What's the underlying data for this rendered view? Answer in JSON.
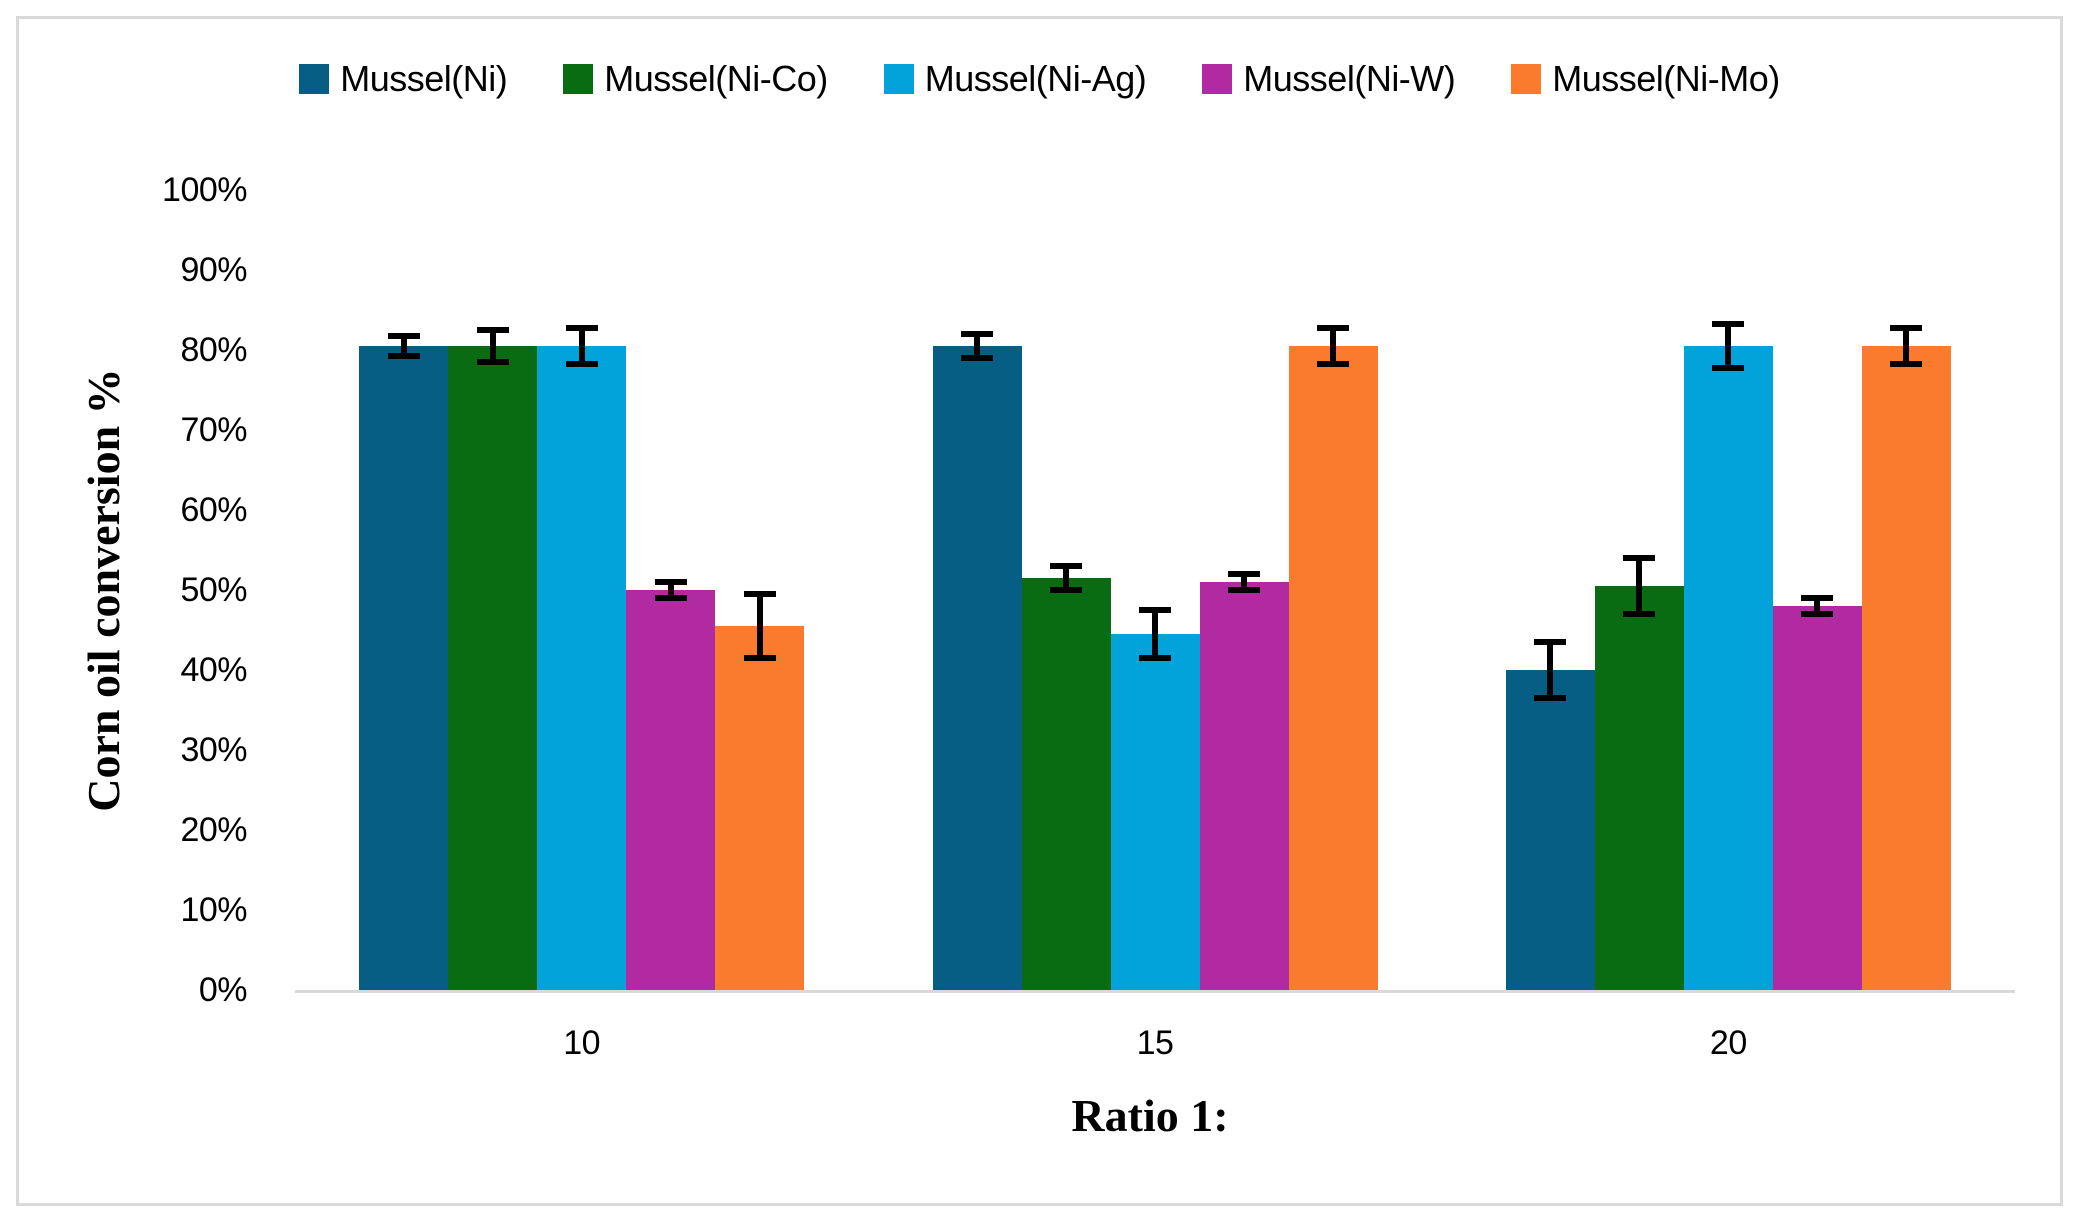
{
  "chart_data": {
    "type": "bar",
    "title": "",
    "xlabel": "Ratio 1:",
    "ylabel": "Corn oil conversion %",
    "categories": [
      "10",
      "15",
      "20"
    ],
    "series": [
      {
        "name": "Mussel(Ni)",
        "color": "#065e85",
        "values": [
          80.5,
          80.5,
          40.0
        ],
        "errors": [
          1.2,
          1.5,
          3.5
        ]
      },
      {
        "name": "Mussel(Ni-Co)",
        "color": "#096c12",
        "values": [
          80.5,
          51.5,
          50.5
        ],
        "errors": [
          2.0,
          1.5,
          3.5
        ]
      },
      {
        "name": "Mussel(Ni-Ag)",
        "color": "#02a2da",
        "values": [
          80.5,
          44.5,
          80.5
        ],
        "errors": [
          2.2,
          3.0,
          2.7
        ]
      },
      {
        "name": "Mussel(Ni-W)",
        "color": "#b22aa2",
        "values": [
          50.0,
          51.0,
          48.0
        ],
        "errors": [
          1.0,
          1.0,
          1.0
        ]
      },
      {
        "name": "Mussel(Ni-Mo)",
        "color": "#fa7a2e",
        "values": [
          45.5,
          80.5,
          80.5
        ],
        "errors": [
          4.0,
          2.2,
          2.3
        ]
      }
    ],
    "yticks": [
      "100%",
      "90%",
      "80%",
      "70%",
      "60%",
      "50%",
      "40%",
      "30%",
      "20%",
      "10%",
      "0%"
    ],
    "ylim": [
      0,
      100
    ],
    "ytick_step": 10,
    "grid": false,
    "error_bars": true,
    "legend_position": "top",
    "colors": {
      "axis_line": "#d9d9d9",
      "figure_border": "#d9d9d9",
      "error_bar": "#000000",
      "text": "#000000",
      "background": "#ffffff"
    }
  }
}
